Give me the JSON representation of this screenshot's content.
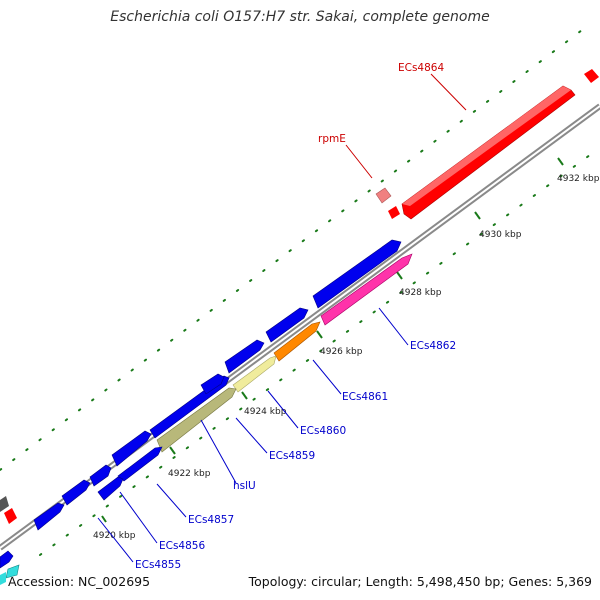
{
  "title": "Escherichia coli O157:H7 str. Sakai, complete genome",
  "footer": {
    "accession": "Accession: NC_002695",
    "summary": "Topology: circular; Length: 5,498,450 bp; Genes: 5,369"
  },
  "colors": {
    "backbone": "#8a8a8a",
    "forward_gene": "#ff0000",
    "forward_rrna_like": "#f08080",
    "reverse_gene": "#0000ee",
    "hslU": "#b8b87a",
    "ECs4860": "#f0ec9c",
    "ECs4861": "#ff8800",
    "ECs4862": "#ff33aa",
    "teal": "#33dddd",
    "tick": "#1a7a1a",
    "label_blue": "#0000cc",
    "label_red": "#cc0000"
  },
  "genes": [
    {
      "id": "ECs4864",
      "label": "ECs4864",
      "strand": "forward",
      "color_key": "forward_gene"
    },
    {
      "id": "rpmE",
      "label": "rpmE",
      "strand": "forward",
      "color_key": "forward_rrna_like"
    },
    {
      "id": "ECs4862",
      "label": "ECs4862",
      "strand": "reverse",
      "color_key": "ECs4862"
    },
    {
      "id": "ECs4861",
      "label": "ECs4861",
      "strand": "reverse",
      "color_key": "ECs4861"
    },
    {
      "id": "ECs4860",
      "label": "ECs4860",
      "strand": "reverse",
      "color_key": "ECs4860"
    },
    {
      "id": "ECs4859",
      "label": "ECs4859",
      "strand": "reverse",
      "color_key": "reverse_gene"
    },
    {
      "id": "hslU",
      "label": "hslU",
      "strand": "reverse",
      "color_key": "hslU"
    },
    {
      "id": "ECs4857",
      "label": "ECs4857",
      "strand": "reverse",
      "color_key": "reverse_gene"
    },
    {
      "id": "ECs4856",
      "label": "ECs4856",
      "strand": "reverse",
      "color_key": "reverse_gene"
    },
    {
      "id": "ECs4855",
      "label": "ECs4855",
      "strand": "reverse",
      "color_key": "reverse_gene"
    }
  ],
  "ticks": [
    {
      "label": "4920 kbp"
    },
    {
      "label": "4922 kbp"
    },
    {
      "label": "4924 kbp"
    },
    {
      "label": "4926 kbp"
    },
    {
      "label": "4928 kbp"
    },
    {
      "label": "4930 kbp"
    },
    {
      "label": "4932 kbp"
    }
  ]
}
